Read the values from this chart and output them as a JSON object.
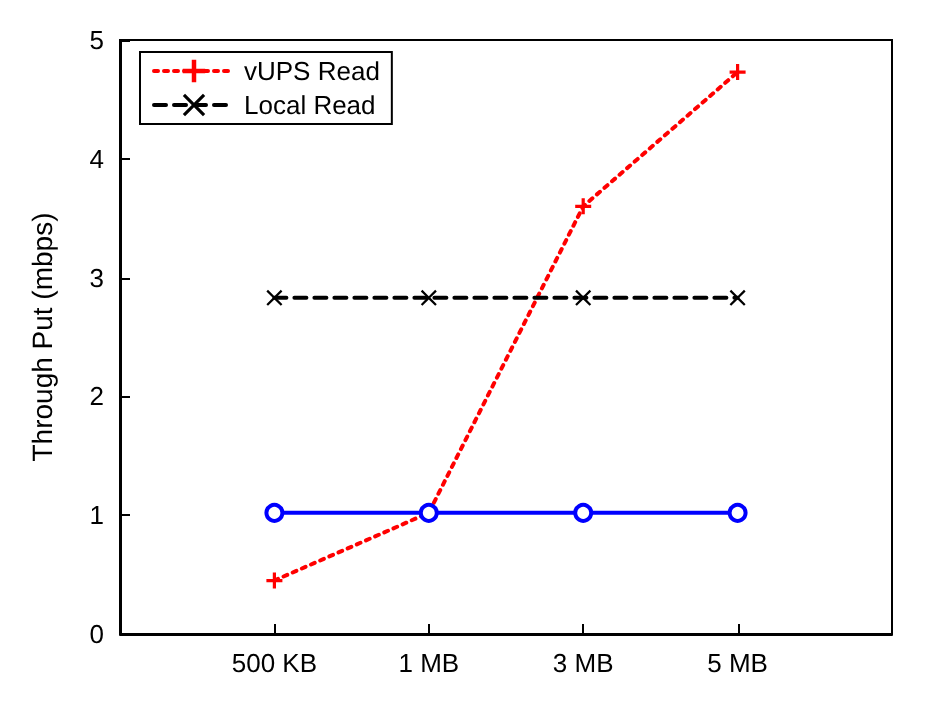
{
  "chart_data": {
    "type": "line",
    "ylabel": "Through Put (mbps)",
    "categories": [
      "500 KB",
      "1 MB",
      "3 MB",
      "5 MB"
    ],
    "series": [
      {
        "name": "vUPS Read",
        "color": "#ff0000",
        "values": [
          0.45,
          1.02,
          3.6,
          4.73
        ],
        "marker": "plus",
        "line_style": "dotted"
      },
      {
        "name": "Local Read",
        "color": "#000000",
        "values": [
          2.83,
          2.83,
          2.83,
          2.83
        ],
        "marker": "cross",
        "line_style": "dashed"
      },
      {
        "color": "#0000ff",
        "values": [
          1.02,
          1.02,
          1.02,
          1.02
        ],
        "marker": "circle",
        "line_style": "solid"
      }
    ],
    "ylim": [
      0,
      5
    ],
    "yticks": [
      0,
      1,
      2,
      3,
      4,
      5
    ],
    "grid": false,
    "legend": "top left"
  }
}
